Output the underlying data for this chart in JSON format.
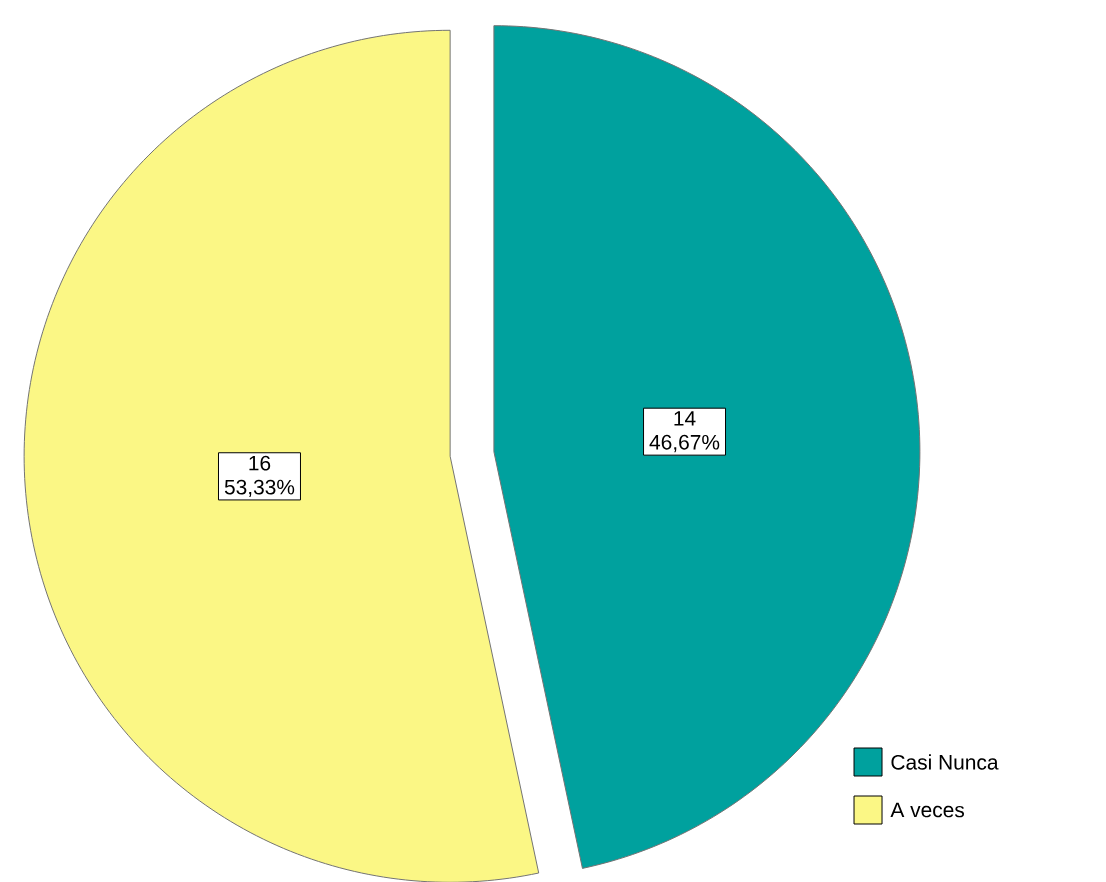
{
  "chart_data": {
    "type": "pie",
    "categories": [
      "Casi Nunca",
      "A veces"
    ],
    "values": [
      14,
      16
    ],
    "colors": [
      "#00a19e",
      "#fbf785"
    ],
    "value_labels": [
      "14 46,67%",
      "16 53,33%"
    ],
    "legend": "bottom right"
  }
}
